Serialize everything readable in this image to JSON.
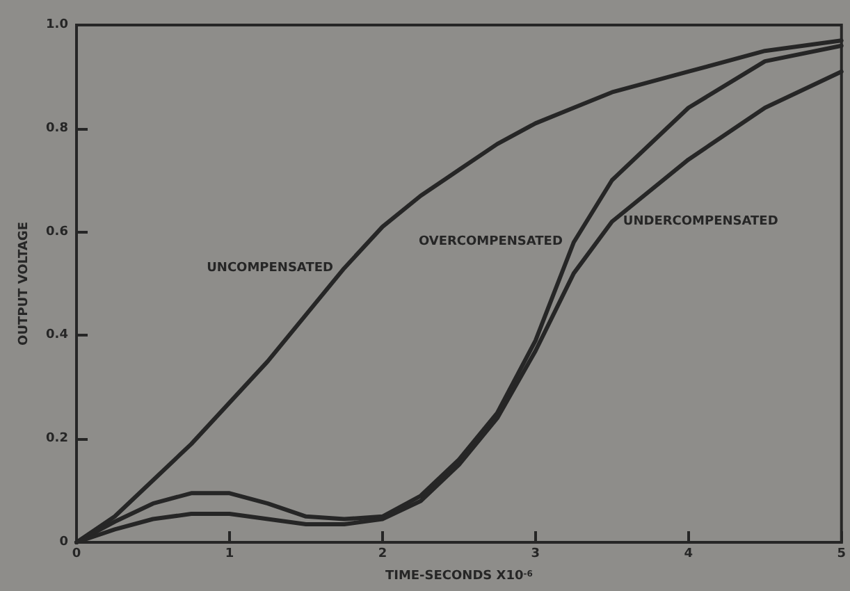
{
  "chart_data": {
    "type": "line",
    "xlabel": "TIME-SECONDS X10$^{-6}$",
    "ylabel": "OUTPUT VOLTAGE",
    "x": [
      0,
      0.25,
      0.5,
      0.75,
      1.0,
      1.25,
      1.5,
      1.75,
      2.0,
      2.25,
      2.5,
      2.75,
      3.0,
      3.25,
      3.5,
      4.0,
      4.5,
      5.0
    ],
    "series": [
      {
        "name": "UNCOMPENSATED",
        "color": "#262626",
        "values": [
          0,
          0.05,
          0.12,
          0.19,
          0.27,
          0.35,
          0.44,
          0.53,
          0.61,
          0.67,
          0.72,
          0.77,
          0.81,
          0.84,
          0.87,
          0.91,
          0.95,
          0.97
        ]
      },
      {
        "name": "OVERCOMPENSATED",
        "color": "#262626",
        "values": [
          0,
          0.04,
          0.075,
          0.095,
          0.095,
          0.075,
          0.05,
          0.045,
          0.05,
          0.09,
          0.16,
          0.25,
          0.39,
          0.58,
          0.7,
          0.84,
          0.93,
          0.96
        ]
      },
      {
        "name": "UNDERCOMPENSATED",
        "color": "#262626",
        "values": [
          0,
          0.025,
          0.045,
          0.055,
          0.055,
          0.045,
          0.035,
          0.035,
          0.045,
          0.08,
          0.15,
          0.24,
          0.37,
          0.52,
          0.62,
          0.74,
          0.84,
          0.91
        ]
      }
    ],
    "xlim": [
      0,
      5
    ],
    "xticks": [
      0,
      1,
      2,
      3,
      4,
      5
    ],
    "ylim": [
      0,
      1.0
    ],
    "yticks": [
      0,
      0.2,
      0.4,
      0.6,
      0.8,
      {
        "value": 1.0,
        "label": "1.0"
      }
    ],
    "grid": false,
    "legend": false,
    "marker": "none",
    "line_style": "solid"
  }
}
